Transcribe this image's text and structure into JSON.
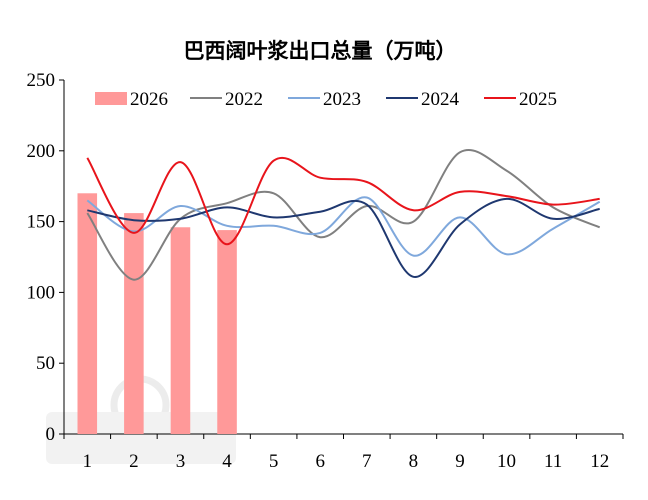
{
  "chart_data": {
    "type": "bar+line",
    "title": "巴西阔叶浆出口总量（万吨）",
    "xlabel": "",
    "ylabel": "",
    "categories": [
      "1",
      "2",
      "3",
      "4",
      "5",
      "6",
      "7",
      "8",
      "9",
      "10",
      "11",
      "12"
    ],
    "ylim": [
      0,
      250
    ],
    "yticks": [
      0,
      50,
      100,
      150,
      200,
      250
    ],
    "grid": false,
    "legend_position": "top",
    "series": [
      {
        "name": "2026",
        "kind": "bar",
        "color": "#ff9999",
        "values": [
          170,
          156,
          146,
          144,
          null,
          null,
          null,
          null,
          null,
          null,
          null,
          null
        ]
      },
      {
        "name": "2022",
        "kind": "line",
        "color": "#808080",
        "values": [
          156,
          109,
          152,
          163,
          170,
          139,
          161,
          150,
          199,
          186,
          160,
          146
        ]
      },
      {
        "name": "2023",
        "kind": "line",
        "color": "#7fa8dc",
        "values": [
          165,
          143,
          161,
          147,
          147,
          142,
          167,
          126,
          153,
          127,
          145,
          164
        ]
      },
      {
        "name": "2024",
        "kind": "line",
        "color": "#1f3870",
        "values": [
          158,
          151,
          152,
          160,
          153,
          157,
          162,
          111,
          148,
          166,
          152,
          159
        ]
      },
      {
        "name": "2025",
        "kind": "line",
        "color": "#e8141b",
        "values": [
          195,
          142,
          192,
          134,
          193,
          181,
          178,
          158,
          171,
          168,
          162,
          166
        ]
      }
    ]
  }
}
